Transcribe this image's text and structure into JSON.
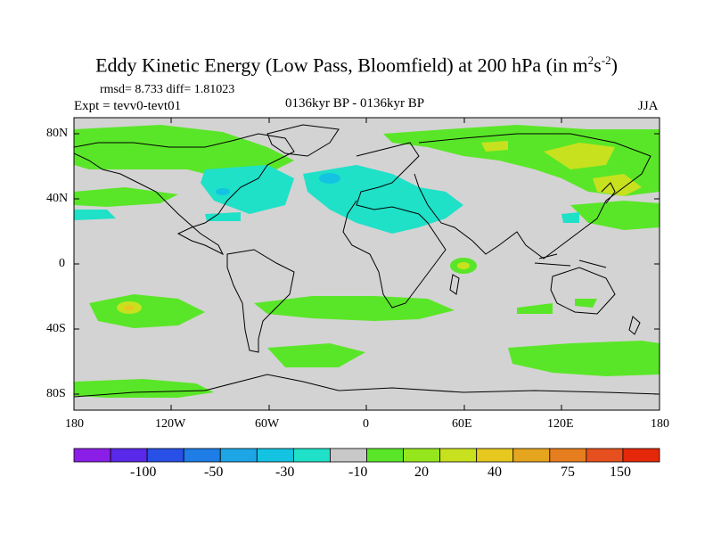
{
  "title": {
    "prefix": "Eddy Kinetic Energy (Low Pass, Bloomfield) at 200 hPa (in m",
    "sup1": "2",
    "mid": "s",
    "sup2": "-2",
    "suffix": ")"
  },
  "stats": "rmsd= 8.733 diff= 1.81023",
  "experiment": "Expt = tevv0-tevt01",
  "period": "0136kyr BP - 0136kyr BP",
  "season": "JJA",
  "lat_labels": [
    "80N",
    "40N",
    "0",
    "40S",
    "80S"
  ],
  "lon_labels": [
    "180",
    "120W",
    "60W",
    "0",
    "60E",
    "120E",
    "180"
  ],
  "colorbar": {
    "colors": [
      "#8a1ee6",
      "#5a28e8",
      "#2850e6",
      "#1e7de6",
      "#1ea5e6",
      "#14c3e1",
      "#1ee1c8",
      "#c8c8c8",
      "#5ae628",
      "#96e61e",
      "#c8e11e",
      "#e6c81e",
      "#e6a51e",
      "#e67d1e",
      "#e6501e",
      "#e6280a"
    ],
    "labels": [
      "-100",
      "-50",
      "-30",
      "-10",
      "20",
      "40",
      "75",
      "150"
    ]
  },
  "legend_colors": {
    "background": "#d3d3d3",
    "green": "#5ae628",
    "cyan": "#1ee1c8",
    "teal": "#14c3e1",
    "yellow": "#c8e11e",
    "orange": "#e6c81e"
  }
}
